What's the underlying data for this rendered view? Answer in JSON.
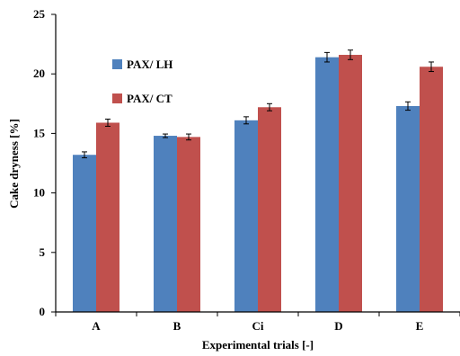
{
  "chart_data": {
    "type": "bar",
    "title": "",
    "xlabel": "Experimental trials [-]",
    "ylabel": "Cake dryness [%]",
    "categories": [
      "A",
      "B",
      "Ci",
      "D",
      "E"
    ],
    "ylim": [
      0,
      25
    ],
    "yticks": [
      0,
      5,
      10,
      15,
      20,
      25
    ],
    "grid": false,
    "legend_position": "top-left",
    "error_bars": true,
    "series": [
      {
        "name": "PAX/ LH",
        "color": "#4f81bd",
        "values": [
          13.2,
          14.8,
          16.1,
          21.4,
          17.3
        ],
        "errors": [
          0.25,
          0.15,
          0.3,
          0.4,
          0.35
        ]
      },
      {
        "name": "PAX/ CT",
        "color": "#c0504d",
        "values": [
          15.9,
          14.7,
          17.2,
          21.6,
          20.6
        ],
        "errors": [
          0.3,
          0.25,
          0.3,
          0.4,
          0.4
        ]
      }
    ]
  }
}
